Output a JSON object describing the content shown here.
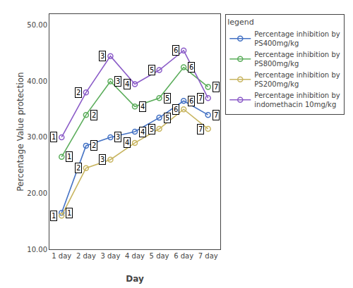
{
  "chart_data": {
    "type": "line",
    "x": [
      1,
      2,
      3,
      4,
      5,
      6,
      7
    ],
    "xlabel": "Day",
    "ylabel": "Percentage Value protection",
    "xlim": [
      0.5,
      7.5
    ],
    "xticks": [
      {
        "value": 1,
        "label": "1 day"
      },
      {
        "value": 2,
        "label": "2 day"
      },
      {
        "value": 3,
        "label": "3 day"
      },
      {
        "value": 4,
        "label": "4 day"
      },
      {
        "value": 5,
        "label": "5 day"
      },
      {
        "value": 6,
        "label": "6 day"
      },
      {
        "value": 7,
        "label": "7 day"
      }
    ],
    "ylim": [
      10.0,
      52.0
    ],
    "yticks": [
      {
        "value": 10.0,
        "label": "10.00"
      },
      {
        "value": 20.0,
        "label": "20.00"
      },
      {
        "value": 30.0,
        "label": "30.00"
      },
      {
        "value": 40.0,
        "label": "40.00"
      },
      {
        "value": 50.0,
        "label": "50.00"
      }
    ],
    "grid": false,
    "legend": "right",
    "legend_title": "legend",
    "series": [
      {
        "name": "Percentage inhibition by\nPS400mg/kg",
        "color": "#4472C4",
        "marker": "o",
        "values": [
          16.5,
          28.5,
          30.0,
          31.0,
          33.5,
          36.5,
          34.0
        ],
        "point_labels": [
          1,
          2,
          3,
          4,
          5,
          6,
          7
        ]
      },
      {
        "name": "Percentage inhibition by\nPS800mg/kg",
        "color": "#5BAD5B",
        "marker": "o",
        "values": [
          26.5,
          34.0,
          40.0,
          35.5,
          37.0,
          42.5,
          39.0
        ],
        "point_labels": [
          1,
          2,
          3,
          4,
          5,
          6,
          7
        ]
      },
      {
        "name": "Percentage inhibition by\nPS200mg/kg",
        "color": "#C8B560",
        "marker": "o",
        "values": [
          16.0,
          24.5,
          26.0,
          29.0,
          31.5,
          35.0,
          31.5
        ],
        "point_labels": [
          1,
          2,
          3,
          4,
          5,
          6,
          7
        ]
      },
      {
        "name": "Percentage inhibition by\nindomethacin 10mg/kg",
        "color": "#8B5CC8",
        "marker": "o",
        "values": [
          30.0,
          38.0,
          44.5,
          39.5,
          42.0,
          45.5,
          37.0
        ],
        "point_labels": [
          1,
          2,
          3,
          4,
          5,
          6,
          7
        ]
      }
    ]
  }
}
